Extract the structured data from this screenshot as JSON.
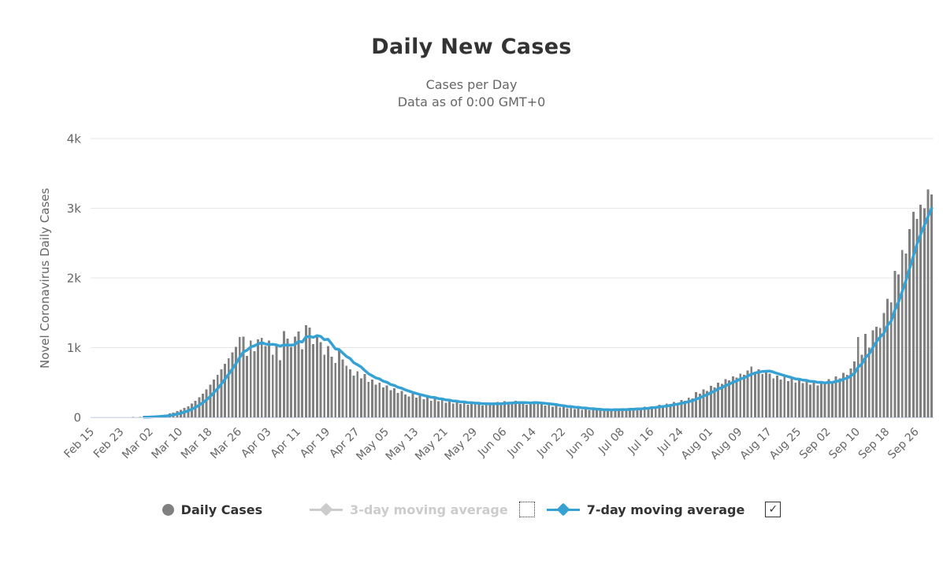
{
  "chart_data": {
    "type": "bar",
    "title": "Daily New Cases",
    "subtitle_line1": "Cases per Day",
    "subtitle_line2": "Data as of 0:00 GMT+0",
    "ylabel": "Novel Coronavirus Daily Cases",
    "ylim": [
      0,
      4000
    ],
    "grid": true,
    "legend_position": "bottom",
    "title_color": "#333333",
    "subtitle_color": "#666666",
    "label_color": "#666666",
    "grid_color": "#e6e6e6",
    "axis_line_color": "#ccd6eb",
    "yticks": [
      {
        "value": 0,
        "label": "0"
      },
      {
        "value": 1000,
        "label": "1k"
      },
      {
        "value": 2000,
        "label": "2k"
      },
      {
        "value": 3000,
        "label": "3k"
      },
      {
        "value": 4000,
        "label": "4k"
      }
    ],
    "x_tick_step_days": 8,
    "x_tick_labels": [
      "Feb 15",
      "Feb 23",
      "Mar 02",
      "Mar 10",
      "Mar 18",
      "Mar 26",
      "Apr 03",
      "Apr 11",
      "Apr 19",
      "Apr 27",
      "May 05",
      "May 13",
      "May 21",
      "May 29",
      "Jun 06",
      "Jun 14",
      "Jun 22",
      "Jun 30",
      "Jul 08",
      "Jul 16",
      "Jul 24",
      "Aug 01",
      "Aug 09",
      "Aug 17",
      "Aug 25",
      "Sep 02",
      "Sep 10",
      "Sep 18",
      "Sep 26"
    ],
    "num_days": 229,
    "series": [
      {
        "name": "Daily Cases",
        "type": "column",
        "color": "#808080",
        "visible": true,
        "values": [
          0,
          0,
          0,
          0,
          0,
          0,
          0,
          1,
          0,
          2,
          1,
          3,
          2,
          4,
          5,
          8,
          15,
          20,
          25,
          30,
          40,
          55,
          70,
          90,
          110,
          135,
          160,
          200,
          240,
          290,
          340,
          400,
          470,
          540,
          610,
          690,
          770,
          850,
          930,
          1010,
          1150,
          1160,
          880,
          1100,
          950,
          1120,
          1140,
          1020,
          1100,
          900,
          1050,
          820,
          1240,
          1130,
          1010,
          1160,
          1230,
          980,
          1320,
          1290,
          1050,
          1180,
          1080,
          900,
          1020,
          870,
          780,
          980,
          830,
          740,
          690,
          600,
          660,
          560,
          620,
          510,
          540,
          470,
          500,
          430,
          460,
          390,
          420,
          350,
          380,
          330,
          300,
          340,
          280,
          310,
          260,
          290,
          240,
          270,
          230,
          250,
          210,
          240,
          200,
          230,
          190,
          220,
          180,
          210,
          190,
          200,
          170,
          190,
          210,
          180,
          220,
          200,
          230,
          190,
          210,
          240,
          200,
          220,
          180,
          210,
          230,
          190,
          200,
          170,
          180,
          150,
          170,
          140,
          160,
          130,
          150,
          120,
          140,
          110,
          130,
          100,
          120,
          100,
          110,
          90,
          120,
          100,
          130,
          110,
          120,
          100,
          130,
          120,
          140,
          130,
          150,
          140,
          160,
          150,
          180,
          170,
          200,
          190,
          220,
          210,
          250,
          240,
          280,
          270,
          360,
          340,
          400,
          380,
          450,
          430,
          500,
          480,
          550,
          530,
          590,
          570,
          630,
          610,
          670,
          730,
          650,
          690,
          620,
          660,
          630,
          560,
          600,
          540,
          580,
          520,
          560,
          500,
          540,
          490,
          530,
          470,
          520,
          460,
          510,
          480,
          550,
          510,
          590,
          560,
          640,
          610,
          700,
          800,
          1150,
          900,
          1200,
          1000,
          1250,
          1300,
          1280,
          1500,
          1700,
          1650,
          2100,
          2050,
          2400,
          2350,
          2700,
          2950,
          2850,
          3050,
          3000,
          3270,
          3200
        ]
      },
      {
        "name": "3-day moving average",
        "type": "line",
        "color": "#cccccc",
        "visible": false,
        "window": 3,
        "derived_from": "Daily Cases"
      },
      {
        "name": "7-day moving average",
        "type": "line",
        "color": "#36a2d4",
        "visible": true,
        "window": 7,
        "derived_from": "Daily Cases"
      }
    ]
  },
  "legend": {
    "checkmark": "✓",
    "items": [
      {
        "label": "Daily Cases",
        "marker": "circle",
        "color": "#808080",
        "text_color": "#333333",
        "enabled": true,
        "checkbox": "none"
      },
      {
        "label": "3-day moving average",
        "marker": "line-diamond",
        "color": "#cccccc",
        "text_color": "#cccccc",
        "enabled": false,
        "checkbox": "unchecked"
      },
      {
        "label": "7-day moving average",
        "marker": "line-diamond",
        "color": "#36a2d4",
        "text_color": "#333333",
        "enabled": true,
        "checkbox": "checked"
      }
    ]
  }
}
